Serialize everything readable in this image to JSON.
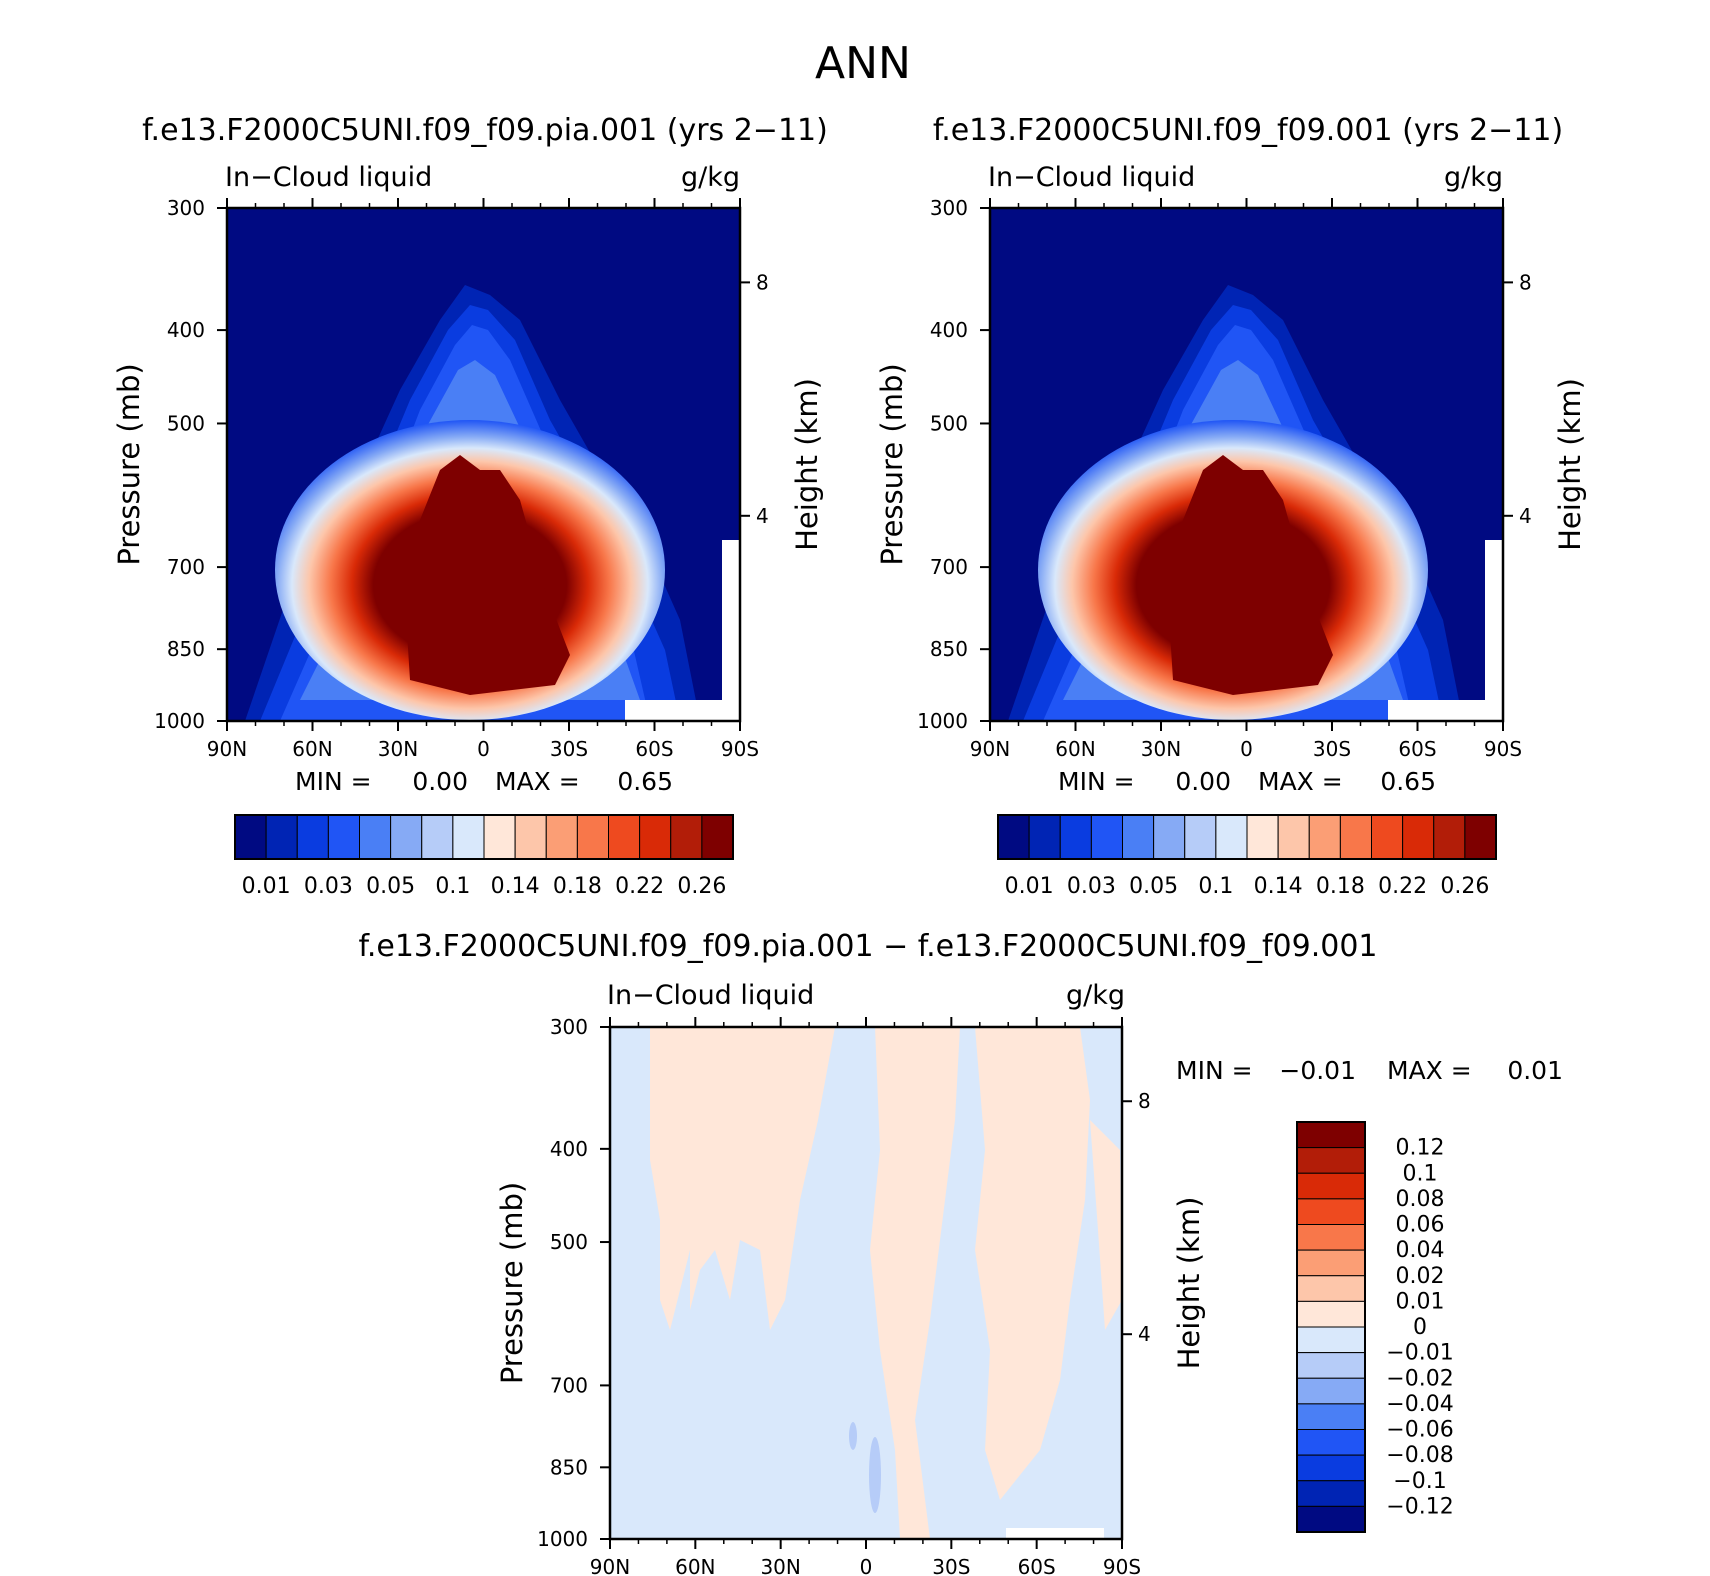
{
  "page_title": "ANN",
  "chart_data": [
    {
      "type": "heatmap",
      "id": "top-left",
      "title": "f.e13.F2000C5UNI.f09_f09.pia.001 (yrs 2−11)",
      "variable": "In−Cloud liquid",
      "units": "g/kg",
      "ylabel": "Pressure (mb)",
      "y2label": "Height (km)",
      "x_ticks": [
        "90N",
        "60N",
        "30N",
        "0",
        "30S",
        "60S",
        "90S"
      ],
      "y_ticks": [
        "300",
        "400",
        "500",
        "700",
        "850",
        "1000"
      ],
      "y2_ticks": [
        "8",
        "4"
      ],
      "stats": {
        "min_label": "MIN =",
        "min": "0.00",
        "max_label": "MAX =",
        "max": "0.65"
      },
      "colorbar_labels": [
        "0.01",
        "0.03",
        "0.05",
        "0.1",
        "0.14",
        "0.18",
        "0.22",
        "0.26"
      ]
    },
    {
      "type": "heatmap",
      "id": "top-right",
      "title": "f.e13.F2000C5UNI.f09_f09.001 (yrs 2−11)",
      "variable": "In−Cloud liquid",
      "units": "g/kg",
      "ylabel": "Pressure (mb)",
      "y2label": "Height (km)",
      "x_ticks": [
        "90N",
        "60N",
        "30N",
        "0",
        "30S",
        "60S",
        "90S"
      ],
      "y_ticks": [
        "300",
        "400",
        "500",
        "700",
        "850",
        "1000"
      ],
      "y2_ticks": [
        "8",
        "4"
      ],
      "stats": {
        "min_label": "MIN =",
        "min": "0.00",
        "max_label": "MAX =",
        "max": "0.65"
      },
      "colorbar_labels": [
        "0.01",
        "0.03",
        "0.05",
        "0.1",
        "0.14",
        "0.18",
        "0.22",
        "0.26"
      ]
    },
    {
      "type": "heatmap",
      "id": "difference",
      "title": "f.e13.F2000C5UNI.f09_f09.pia.001 − f.e13.F2000C5UNI.f09_f09.001",
      "variable": "In−Cloud liquid",
      "units": "g/kg",
      "ylabel": "Pressure (mb)",
      "y2label": "Height (km)",
      "x_ticks": [
        "90N",
        "60N",
        "30N",
        "0",
        "30S",
        "60S",
        "90S"
      ],
      "y_ticks": [
        "300",
        "400",
        "500",
        "700",
        "850",
        "1000"
      ],
      "y2_ticks": [
        "8",
        "4"
      ],
      "stats": {
        "min_label": "MIN =",
        "min": "−0.01",
        "max_label": "MAX =",
        "max": "0.01"
      },
      "colorbar_labels": [
        "0.12",
        "0.1",
        "0.08",
        "0.06",
        "0.04",
        "0.02",
        "0.01",
        "0",
        "−0.01",
        "−0.02",
        "−0.04",
        "−0.06",
        "−0.08",
        "−0.1",
        "−0.12"
      ]
    }
  ],
  "colors": {
    "seq": [
      "#000a82",
      "#0024b4",
      "#0a3ce0",
      "#2055f5",
      "#4a7ff5",
      "#86aaf5",
      "#b6ccf8",
      "#d9e8fb",
      "#ffe7d9",
      "#fdc6aa",
      "#fb9e75",
      "#f8774a",
      "#ee4a1f",
      "#d92a07",
      "#b21d08",
      "#7e0000"
    ],
    "diff": [
      "#7e0000",
      "#b21d08",
      "#d92a07",
      "#ee4a1f",
      "#f8774a",
      "#fb9e75",
      "#fdc6aa",
      "#ffe7d9",
      "#d9e8fb",
      "#b6ccf8",
      "#86aaf5",
      "#4a7ff5",
      "#2055f5",
      "#0a3ce0",
      "#0024b4",
      "#000a82"
    ]
  }
}
